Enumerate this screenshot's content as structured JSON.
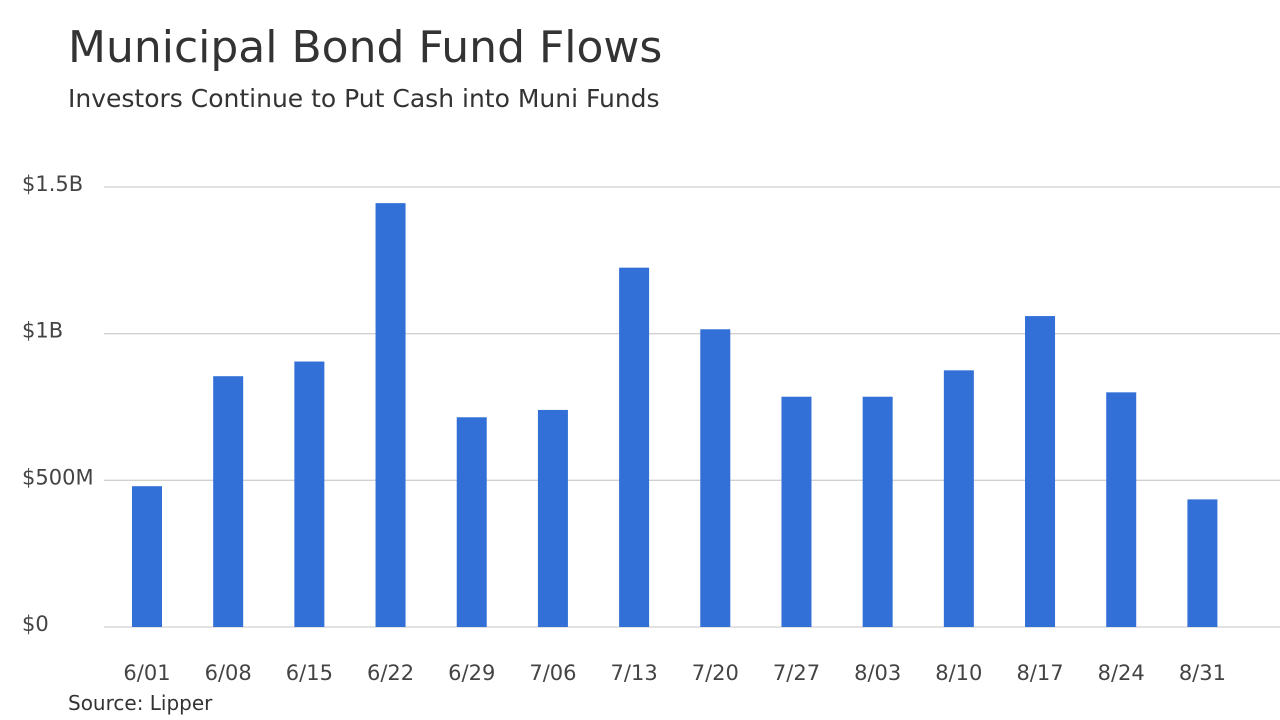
{
  "chart_data": {
    "type": "bar",
    "title": "Municipal Bond Fund Flows",
    "subtitle": "Investors Continue to Put Cash into Muni Funds",
    "source": "Source: Lipper",
    "categories": [
      "6/01",
      "6/08",
      "6/15",
      "6/22",
      "6/29",
      "7/06",
      "7/13",
      "7/20",
      "7/27",
      "8/03",
      "8/10",
      "8/17",
      "8/24",
      "8/31"
    ],
    "values": [
      480000000,
      855000000,
      905000000,
      1445000000,
      715000000,
      740000000,
      1225000000,
      1015000000,
      785000000,
      785000000,
      875000000,
      1060000000,
      800000000,
      435000000
    ],
    "color": "#326fd6",
    "ylim": [
      0,
      1500000000
    ],
    "yticks": [
      {
        "value": 0,
        "label": "$0"
      },
      {
        "value": 500000000,
        "label": "$500M"
      },
      {
        "value": 1000000000,
        "label": "$1B"
      },
      {
        "value": 1500000000,
        "label": "$1.5B"
      }
    ],
    "grid": true
  }
}
